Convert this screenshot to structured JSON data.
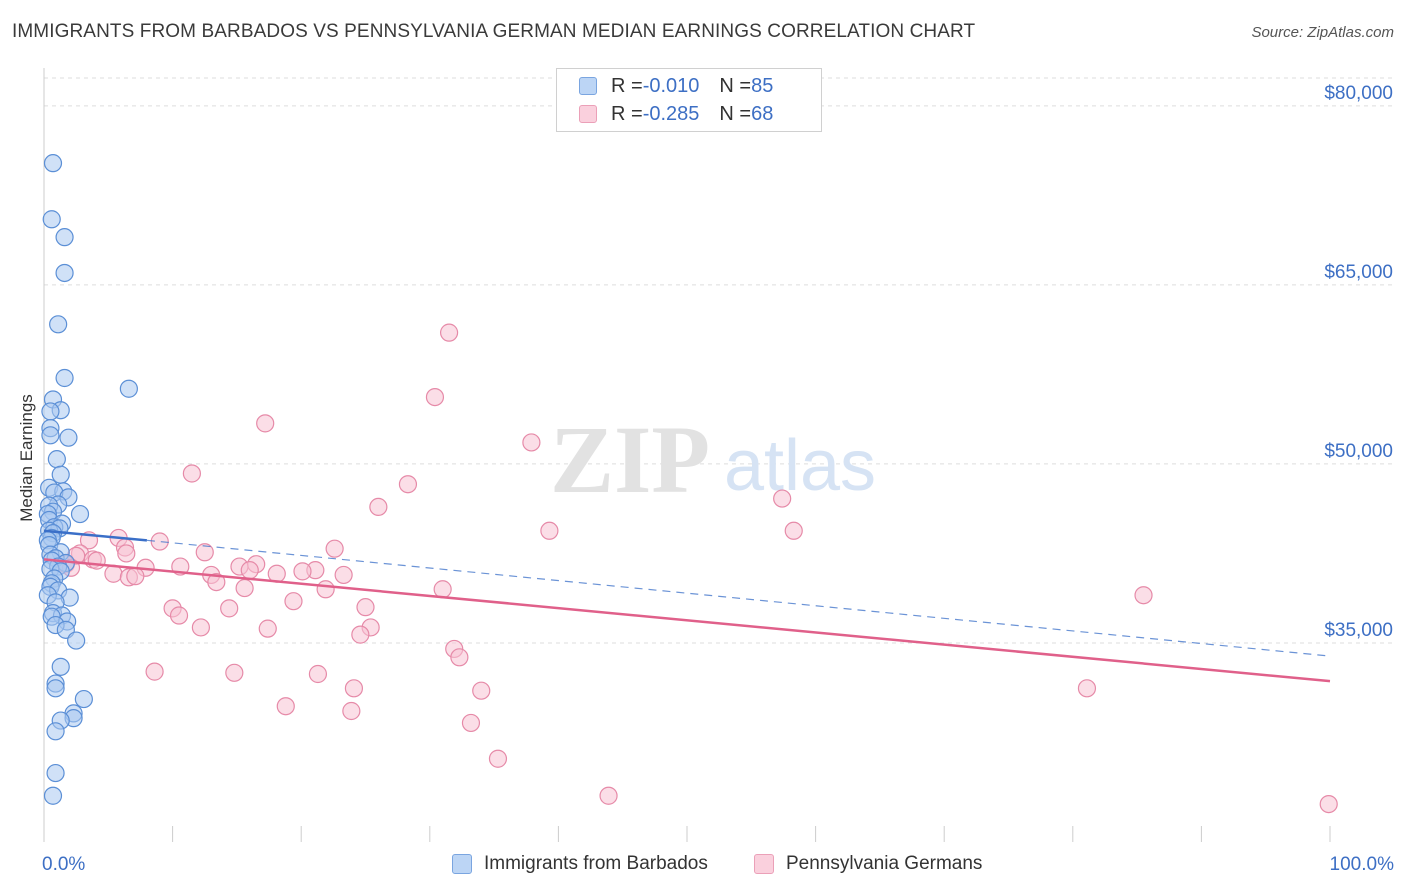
{
  "title": "IMMIGRANTS FROM BARBADOS VS PENNSYLVANIA GERMAN MEDIAN EARNINGS CORRELATION CHART",
  "source": "Source: ZipAtlas.com",
  "watermark": {
    "zip": "ZIP",
    "atlas": "atlas"
  },
  "legend": {
    "series1": {
      "r_label": "R = ",
      "r_value": "-0.010",
      "n_label": "N = ",
      "n_value": "85"
    },
    "series2": {
      "r_label": "R = ",
      "r_value": "-0.285",
      "n_label": "N = ",
      "n_value": "68"
    }
  },
  "colors": {
    "blue_fill": "#a9c8f0",
    "blue_stroke": "#5b8fd6",
    "blue_line": "#3a6fc8",
    "pink_fill": "#f7c3d3",
    "pink_stroke": "#e68aa8",
    "pink_line": "#e0608a",
    "grid": "#dddddd",
    "axis_text": "#3d6fc4"
  },
  "chart_data": {
    "type": "scatter",
    "title": "IMMIGRANTS FROM BARBADOS VS PENNSYLVANIA GERMAN MEDIAN EARNINGS CORRELATION CHART",
    "xlabel": "",
    "ylabel": "Median Earnings",
    "xlim": [
      0,
      100
    ],
    "ylim": [
      20000,
      82000
    ],
    "x_tick_labels": [
      "0.0%",
      "100.0%"
    ],
    "y_ticks": [
      35000,
      50000,
      65000,
      80000
    ],
    "y_tick_labels": [
      "$35,000",
      "$50,000",
      "$65,000",
      "$80,000"
    ],
    "grid": true,
    "legend_position": "top-center",
    "series": [
      {
        "name": "Immigrants from Barbados",
        "color": "#a9c8f0",
        "points": [
          [
            0.7,
            75200
          ],
          [
            0.6,
            70500
          ],
          [
            1.6,
            69000
          ],
          [
            1.6,
            66000
          ],
          [
            1.1,
            61700
          ],
          [
            1.6,
            57200
          ],
          [
            6.6,
            56300
          ],
          [
            0.7,
            55400
          ],
          [
            1.3,
            54500
          ],
          [
            0.5,
            54400
          ],
          [
            0.5,
            53000
          ],
          [
            1.9,
            52200
          ],
          [
            0.5,
            52400
          ],
          [
            1.0,
            50400
          ],
          [
            1.3,
            49100
          ],
          [
            0.4,
            48000
          ],
          [
            1.5,
            47700
          ],
          [
            0.8,
            47600
          ],
          [
            1.9,
            47200
          ],
          [
            1.1,
            46600
          ],
          [
            0.4,
            46500
          ],
          [
            0.7,
            46000
          ],
          [
            0.3,
            45800
          ],
          [
            2.8,
            45800
          ],
          [
            0.4,
            45300
          ],
          [
            1.4,
            45000
          ],
          [
            0.8,
            44700
          ],
          [
            1.2,
            44600
          ],
          [
            0.4,
            44400
          ],
          [
            0.7,
            44200
          ],
          [
            0.6,
            43800
          ],
          [
            0.3,
            43600
          ],
          [
            0.4,
            43200
          ],
          [
            1.3,
            42600
          ],
          [
            0.5,
            42400
          ],
          [
            0.9,
            42100
          ],
          [
            0.6,
            41900
          ],
          [
            1.7,
            41700
          ],
          [
            1.1,
            41400
          ],
          [
            0.5,
            41200
          ],
          [
            1.3,
            41000
          ],
          [
            0.8,
            40400
          ],
          [
            0.6,
            40000
          ],
          [
            0.5,
            39700
          ],
          [
            1.1,
            39400
          ],
          [
            0.3,
            39000
          ],
          [
            2.0,
            38800
          ],
          [
            0.9,
            38400
          ],
          [
            0.7,
            37500
          ],
          [
            1.4,
            37300
          ],
          [
            0.6,
            37200
          ],
          [
            1.8,
            36800
          ],
          [
            0.9,
            36500
          ],
          [
            1.7,
            36100
          ],
          [
            2.5,
            35200
          ],
          [
            1.3,
            33000
          ],
          [
            0.9,
            31600
          ],
          [
            0.9,
            31200
          ],
          [
            3.1,
            30300
          ],
          [
            2.3,
            29100
          ],
          [
            2.3,
            28700
          ],
          [
            1.3,
            28500
          ],
          [
            0.9,
            27600
          ],
          [
            0.9,
            24100
          ],
          [
            0.7,
            22200
          ]
        ]
      },
      {
        "name": "Pennsylvania Germans",
        "color": "#f7c3d3",
        "points": [
          [
            31.5,
            61000
          ],
          [
            30.4,
            55600
          ],
          [
            17.2,
            53400
          ],
          [
            37.9,
            51800
          ],
          [
            11.5,
            49200
          ],
          [
            28.3,
            48300
          ],
          [
            26.0,
            46400
          ],
          [
            57.4,
            47100
          ],
          [
            39.3,
            44400
          ],
          [
            58.3,
            44400
          ],
          [
            3.5,
            43600
          ],
          [
            5.8,
            43800
          ],
          [
            9.0,
            43500
          ],
          [
            6.3,
            43000
          ],
          [
            22.6,
            42900
          ],
          [
            2.8,
            42500
          ],
          [
            2.5,
            42300
          ],
          [
            12.5,
            42600
          ],
          [
            6.4,
            42500
          ],
          [
            3.8,
            42000
          ],
          [
            4.1,
            41900
          ],
          [
            1.7,
            41600
          ],
          [
            2.1,
            41300
          ],
          [
            16.5,
            41600
          ],
          [
            15.2,
            41400
          ],
          [
            7.9,
            41300
          ],
          [
            10.6,
            41400
          ],
          [
            16.0,
            41100
          ],
          [
            21.1,
            41100
          ],
          [
            20.1,
            41000
          ],
          [
            18.1,
            40800
          ],
          [
            13.0,
            40700
          ],
          [
            5.4,
            40800
          ],
          [
            23.3,
            40700
          ],
          [
            6.6,
            40500
          ],
          [
            7.1,
            40600
          ],
          [
            13.4,
            40100
          ],
          [
            15.6,
            39600
          ],
          [
            31.0,
            39500
          ],
          [
            21.9,
            39500
          ],
          [
            19.4,
            38500
          ],
          [
            10.0,
            37900
          ],
          [
            14.4,
            37900
          ],
          [
            25.0,
            38000
          ],
          [
            10.5,
            37300
          ],
          [
            12.2,
            36300
          ],
          [
            17.4,
            36200
          ],
          [
            25.4,
            36300
          ],
          [
            24.6,
            35700
          ],
          [
            31.9,
            34500
          ],
          [
            32.3,
            33800
          ],
          [
            8.6,
            32600
          ],
          [
            14.8,
            32500
          ],
          [
            21.3,
            32400
          ],
          [
            24.1,
            31200
          ],
          [
            34.0,
            31000
          ],
          [
            18.8,
            29700
          ],
          [
            23.9,
            29300
          ],
          [
            33.2,
            28300
          ],
          [
            35.3,
            25300
          ],
          [
            43.9,
            22200
          ],
          [
            85.5,
            39000
          ],
          [
            81.1,
            31200
          ],
          [
            99.9,
            21500
          ]
        ]
      }
    ],
    "trend_lines": [
      {
        "series": "Immigrants from Barbados",
        "solid": [
          [
            0,
            44400
          ],
          [
            8,
            43600
          ]
        ],
        "dashed": [
          [
            8,
            43600
          ],
          [
            100,
            33900
          ]
        ]
      },
      {
        "series": "Pennsylvania Germans",
        "solid": [
          [
            0,
            42000
          ],
          [
            100,
            31800
          ]
        ]
      }
    ]
  }
}
